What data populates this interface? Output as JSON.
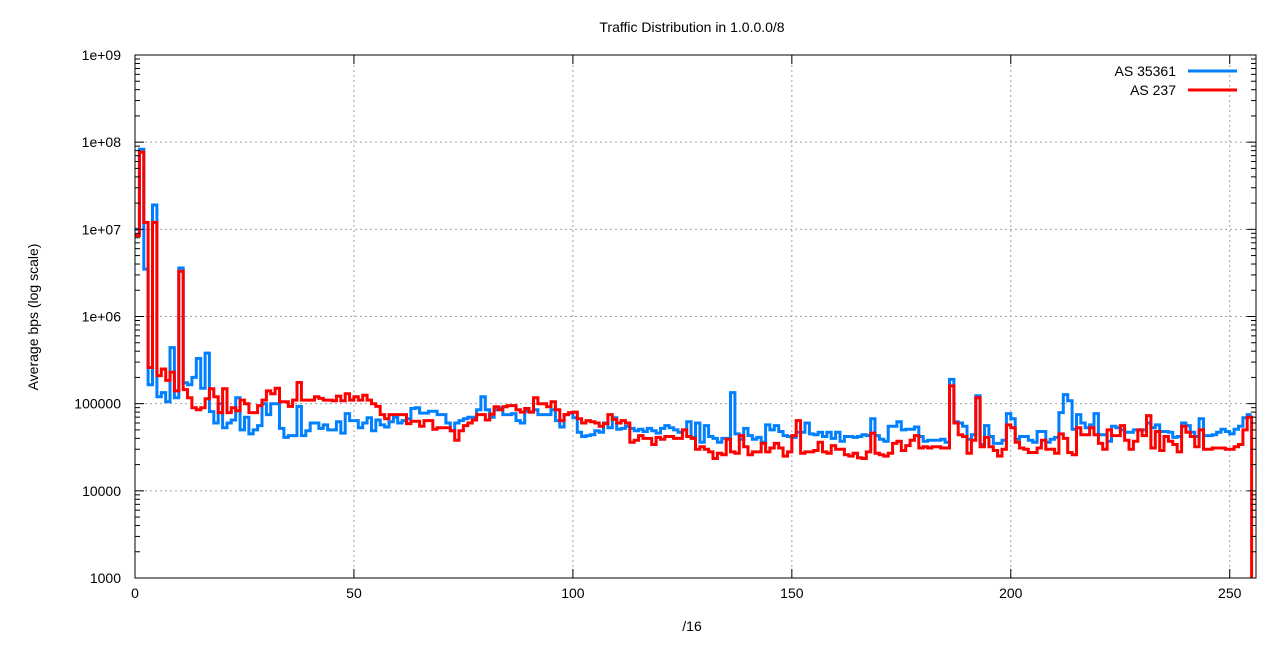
{
  "chart_data": {
    "type": "line",
    "style": "steps",
    "title": "Traffic Distribution in 1.0.0.0/8",
    "xlabel": "/16",
    "ylabel": "Average bps (log scale)",
    "xlim": [
      0,
      256
    ],
    "ylim": [
      1000,
      1000000000
    ],
    "yscale": "log",
    "grid": true,
    "legend_position": "top-right",
    "xticks": [
      "0",
      "50",
      "100",
      "150",
      "200",
      "250"
    ],
    "xtick_values": [
      0,
      50,
      100,
      150,
      200,
      250
    ],
    "yticks": [
      "1000",
      "10000",
      "100000",
      "1e+06",
      "1e+07",
      "1e+08",
      "1e+09"
    ],
    "ytick_values": [
      1000,
      10000,
      100000,
      1000000,
      10000000,
      100000000,
      1000000000
    ],
    "series": [
      {
        "name": "AS 35361",
        "color": "#0080ff",
        "values": [
          10000000,
          83000000,
          3500000,
          165000,
          19000000,
          120000,
          134000,
          105000,
          440000,
          117000,
          3600000,
          174000,
          165000,
          200000,
          330000,
          150000,
          380000,
          81000,
          60000,
          100000,
          53000,
          60000,
          65000,
          117000,
          50000,
          70000,
          45000,
          50000,
          56000,
          100000,
          75000,
          100000,
          100000,
          52000,
          41000,
          43000,
          43000,
          93000,
          43000,
          49000,
          60000,
          60000,
          52000,
          57000,
          50000,
          50000,
          62000,
          46000,
          77000,
          64000,
          64000,
          53000,
          60000,
          69000,
          49000,
          65000,
          57000,
          54000,
          62000,
          70000,
          60000,
          64000,
          67000,
          88000,
          90000,
          78000,
          78000,
          82000,
          82000,
          75000,
          75000,
          60000,
          49000,
          60000,
          64000,
          67000,
          70000,
          70000,
          85000,
          120000,
          85000,
          70000,
          85000,
          90000,
          75000,
          75000,
          77000,
          64000,
          60000,
          82000,
          80000,
          85000,
          75000,
          75000,
          75000,
          85000,
          64000,
          54000,
          75000,
          78000,
          69000,
          47000,
          42000,
          43000,
          44000,
          49000,
          47000,
          60000,
          53000,
          69000,
          51000,
          52000,
          55000,
          52000,
          49000,
          51000,
          48000,
          52000,
          49000,
          46000,
          52000,
          56000,
          53000,
          50000,
          47000,
          50000,
          62000,
          41000,
          60000,
          36000,
          56000,
          42000,
          40000,
          36000,
          40000,
          40000,
          134000,
          45000,
          39000,
          52000,
          43000,
          39000,
          41000,
          36000,
          57000,
          50000,
          56000,
          48000,
          43000,
          42000,
          41000,
          47000,
          47000,
          60000,
          45000,
          44000,
          47000,
          42000,
          47000,
          40000,
          47000,
          37000,
          42000,
          42000,
          41000,
          42000,
          44000,
          43000,
          67000,
          43000,
          39000,
          37000,
          55000,
          55000,
          62000,
          50000,
          51000,
          51000,
          54000,
          42000,
          37000,
          38000,
          38000,
          38000,
          39000,
          36000,
          190000,
          62000,
          60000,
          55000,
          39000,
          44000,
          123000,
          34000,
          56000,
          42000,
          35000,
          35000,
          38000,
          77000,
          67000,
          39000,
          42000,
          42000,
          38000,
          36000,
          48000,
          48000,
          36000,
          39000,
          41000,
          79000,
          127000,
          108000,
          51000,
          75000,
          60000,
          53000,
          57000,
          77000,
          44000,
          44000,
          37000,
          55000,
          53000,
          50000,
          47000,
          47000,
          50000,
          50000,
          50000,
          60000,
          53000,
          57000,
          48000,
          48000,
          47000,
          41000,
          42000,
          60000,
          56000,
          47000,
          42000,
          67000,
          43000,
          43000,
          44000,
          47000,
          51000,
          48000,
          45000,
          51000,
          55000,
          69000,
          75000
        ]
      },
      {
        "name": "AS 237",
        "color": "#ff0000",
        "values": [
          8500000,
          77000000,
          12000000,
          260000,
          12000000,
          210000,
          250000,
          185000,
          230000,
          140000,
          3300000,
          145000,
          117000,
          90000,
          85000,
          90000,
          114000,
          148000,
          120000,
          79000,
          148000,
          79000,
          90000,
          83000,
          110000,
          100000,
          79000,
          79000,
          95000,
          110000,
          140000,
          130000,
          150000,
          105000,
          105000,
          93000,
          110000,
          175000,
          110000,
          110000,
          110000,
          120000,
          115000,
          110000,
          110000,
          108000,
          122000,
          108000,
          130000,
          110000,
          120000,
          110000,
          125000,
          110000,
          100000,
          93000,
          75000,
          67000,
          75000,
          75000,
          75000,
          75000,
          59000,
          63000,
          63000,
          55000,
          64000,
          64000,
          51000,
          53000,
          53000,
          53000,
          49000,
          38000,
          49000,
          56000,
          60000,
          65000,
          75000,
          75000,
          65000,
          76000,
          92000,
          85000,
          92000,
          95000,
          95000,
          85000,
          80000,
          88000,
          80000,
          117000,
          100000,
          100000,
          92000,
          105000,
          85000,
          64000,
          75000,
          79000,
          80000,
          67000,
          60000,
          64000,
          62000,
          60000,
          55000,
          59000,
          75000,
          66000,
          60000,
          64000,
          60000,
          36000,
          38000,
          43000,
          40000,
          40000,
          34000,
          41000,
          39000,
          42000,
          42000,
          40000,
          40000,
          50000,
          42000,
          40000,
          30000,
          32000,
          30000,
          28000,
          23500,
          27000,
          26000,
          39000,
          28000,
          27000,
          43000,
          32000,
          26000,
          28000,
          28000,
          35000,
          28000,
          31000,
          35000,
          31000,
          25000,
          28000,
          43000,
          64000,
          27000,
          28000,
          28000,
          29000,
          36000,
          28000,
          27000,
          33000,
          30000,
          30000,
          26000,
          25000,
          27000,
          24000,
          23500,
          28000,
          46000,
          27000,
          26000,
          25000,
          27000,
          35000,
          37000,
          29000,
          33000,
          38000,
          43000,
          31000,
          32000,
          31000,
          32000,
          32000,
          31000,
          31000,
          160000,
          60000,
          44000,
          42000,
          27000,
          38000,
          117000,
          32000,
          41000,
          32000,
          29000,
          25000,
          30000,
          57000,
          53000,
          36000,
          31000,
          30000,
          27500,
          27500,
          31000,
          38000,
          30000,
          30000,
          27000,
          45000,
          40000,
          27500,
          26000,
          53000,
          44000,
          44000,
          53000,
          44000,
          35000,
          30000,
          50000,
          43000,
          43000,
          56000,
          38000,
          30000,
          37000,
          50000,
          43000,
          73000,
          31000,
          48000,
          29000,
          42000,
          37000,
          34000,
          28000,
          55000,
          47000,
          42000,
          32000,
          50000,
          30000,
          30000,
          31000,
          31000,
          31000,
          30000,
          30000,
          32000,
          34000,
          50000,
          70000
        ],
        "end_value": 1000
      }
    ]
  }
}
